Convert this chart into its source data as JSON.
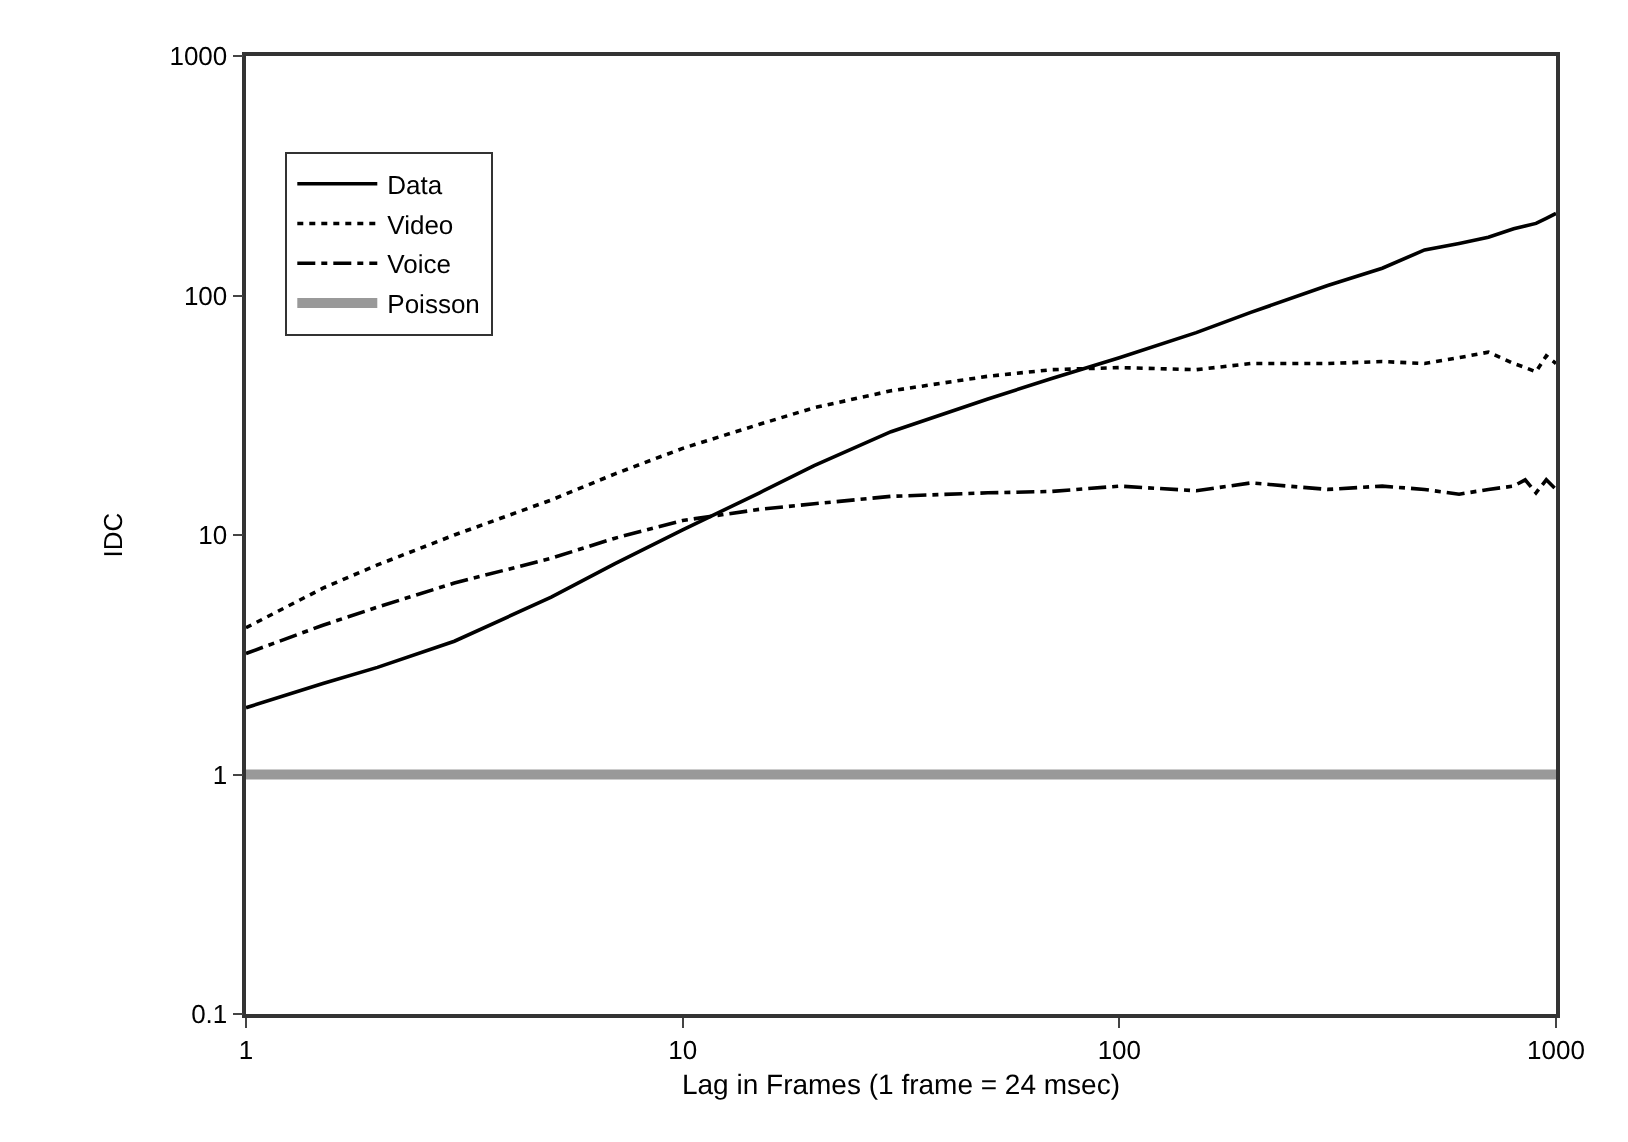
{
  "chart_data": {
    "type": "line",
    "xlabel": "Lag in Frames (1 frame = 24 msec)",
    "ylabel": "IDC",
    "log": "xy",
    "xlim": [
      1,
      1000
    ],
    "xticks": [
      1,
      10,
      100,
      1000
    ],
    "ylim": [
      0.1,
      1000
    ],
    "yticks": [
      0.1,
      1,
      10,
      100,
      1000
    ],
    "legend": "top left",
    "x": [
      1,
      1.5,
      2,
      3,
      5,
      7,
      10,
      15,
      20,
      30,
      50,
      70,
      100,
      150,
      200,
      300,
      400,
      500,
      600,
      700,
      800,
      850,
      900,
      950,
      1000
    ],
    "series": [
      {
        "name": "Data",
        "color": "#000000",
        "line_style": "solid",
        "values": [
          1.9,
          2.4,
          2.8,
          3.6,
          5.5,
          7.6,
          10.5,
          15,
          19.5,
          27,
          37,
          45,
          55,
          70,
          85,
          110,
          130,
          155,
          165,
          175,
          190,
          195,
          200,
          210,
          220
        ]
      },
      {
        "name": "Video",
        "color": "#000000",
        "line_style": "dotted",
        "values": [
          4.1,
          6,
          7.5,
          10,
          14,
          18,
          23,
          29,
          34,
          40,
          46,
          49,
          50,
          49,
          52,
          52,
          53,
          52,
          55,
          58,
          52,
          50,
          48,
          56,
          52
        ]
      },
      {
        "name": "Voice",
        "color": "#000000",
        "line_style": "dashed",
        "values": [
          3.2,
          4.2,
          5,
          6.3,
          8,
          9.7,
          11.5,
          12.8,
          13.5,
          14.5,
          15,
          15.2,
          16,
          15.3,
          16.5,
          15.5,
          16,
          15.5,
          14.8,
          15.5,
          16,
          17,
          15,
          17,
          15.5
        ]
      },
      {
        "name": "Poisson",
        "color": "#999999",
        "line_style": "solid",
        "x": [
          1,
          1000
        ],
        "values": [
          1,
          1
        ]
      }
    ]
  }
}
